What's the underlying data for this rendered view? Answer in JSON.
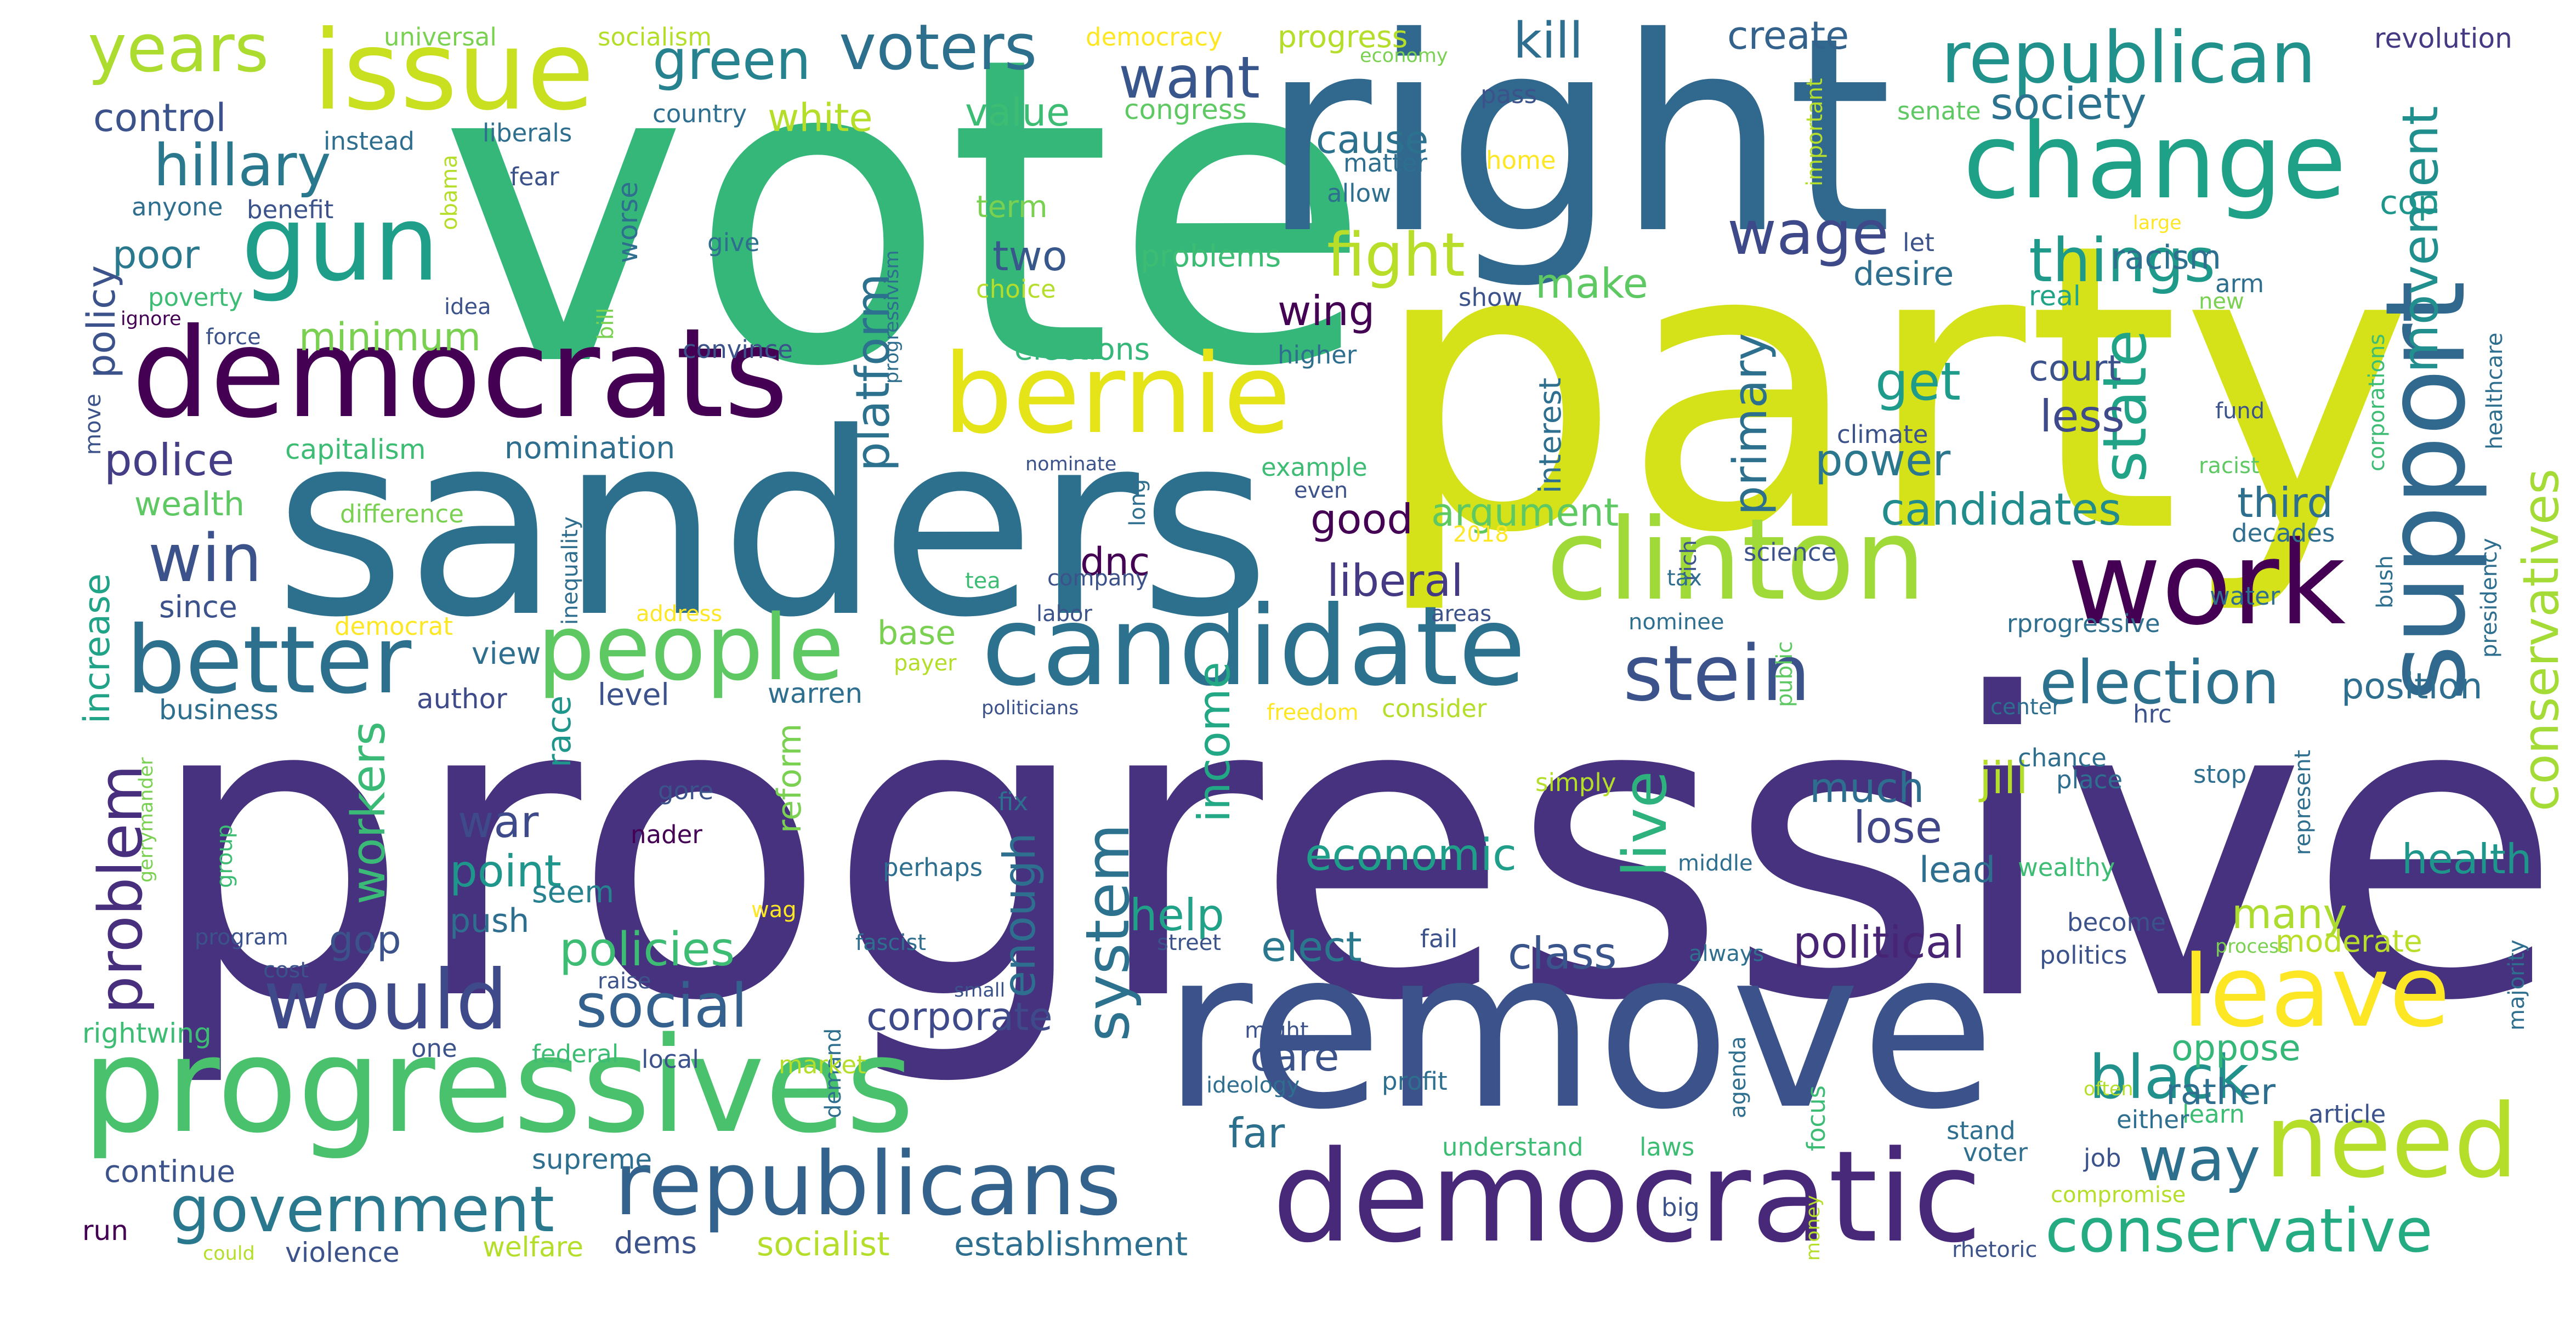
{
  "words": [
    {
      "text": "progressive",
      "color": "#46327e"
    },
    {
      "text": "vote",
      "color": "#35b779"
    },
    {
      "text": "party",
      "color": "#d5e21a"
    },
    {
      "text": "right",
      "color": "#31688e"
    },
    {
      "text": "sanders",
      "color": "#2d708e"
    },
    {
      "text": "remove",
      "color": "#3b528b"
    },
    {
      "text": "issue",
      "color": "#c8e020"
    },
    {
      "text": "democrats",
      "color": "#440154"
    },
    {
      "text": "change",
      "color": "#1fa188"
    },
    {
      "text": "gun",
      "color": "#1f9e89"
    },
    {
      "text": "bernie",
      "color": "#e5e419"
    },
    {
      "text": "support",
      "color": "#31688e"
    },
    {
      "text": "clinton",
      "color": "#a0da39"
    },
    {
      "text": "progressives",
      "color": "#4ac16d"
    },
    {
      "text": "candidate",
      "color": "#2c728e"
    },
    {
      "text": "work",
      "color": "#440154"
    },
    {
      "text": "better",
      "color": "#2d708e"
    },
    {
      "text": "people",
      "color": "#5ec962"
    },
    {
      "text": "democratic",
      "color": "#482878"
    },
    {
      "text": "republicans",
      "color": "#33638d"
    },
    {
      "text": "need",
      "color": "#b5de2b"
    },
    {
      "text": "leave",
      "color": "#fde725"
    },
    {
      "text": "would",
      "color": "#3e4a89"
    },
    {
      "text": "stein",
      "color": "#3b528b"
    },
    {
      "text": "election",
      "color": "#2c728e"
    },
    {
      "text": "government",
      "color": "#2a788e"
    },
    {
      "text": "conservative",
      "color": "#25ab82"
    },
    {
      "text": "republican",
      "color": "#21918c"
    },
    {
      "text": "voters",
      "color": "#2d708e"
    },
    {
      "text": "green",
      "color": "#26828e"
    },
    {
      "text": "hillary",
      "color": "#2a788e"
    },
    {
      "text": "years",
      "color": "#addc30"
    },
    {
      "text": "social",
      "color": "#34618d"
    },
    {
      "text": "way",
      "color": "#2d708e"
    },
    {
      "text": "black",
      "color": "#21918c"
    },
    {
      "text": "win",
      "color": "#3b528b"
    },
    {
      "text": "wage",
      "color": "#3e4989"
    },
    {
      "text": "things",
      "color": "#1f9a8a"
    },
    {
      "text": "fight",
      "color": "#b8de29"
    },
    {
      "text": "want",
      "color": "#39568c"
    },
    {
      "text": "system",
      "color": "#2c728e"
    },
    {
      "text": "live",
      "color": "#2db27d"
    },
    {
      "text": "state",
      "color": "#20a386"
    },
    {
      "text": "movement",
      "color": "#218f8d"
    },
    {
      "text": "conservatives",
      "color": "#a5db36"
    },
    {
      "text": "problem",
      "color": "#472f7d"
    },
    {
      "text": "platform",
      "color": "#2c728e"
    },
    {
      "text": "primary",
      "color": "#2d708e"
    },
    {
      "text": "kill",
      "color": "#2e6e8e"
    },
    {
      "text": "society",
      "color": "#2c728e"
    },
    {
      "text": "create",
      "color": "#33638d"
    },
    {
      "text": "policies",
      "color": "#3dbc74"
    },
    {
      "text": "economic",
      "color": "#1f9e89"
    },
    {
      "text": "political",
      "color": "#482475"
    },
    {
      "text": "candidates",
      "color": "#228c8d"
    },
    {
      "text": "class",
      "color": "#3a548c"
    },
    {
      "text": "get",
      "color": "#1e9b8a"
    },
    {
      "text": "less",
      "color": "#3e4a89"
    },
    {
      "text": "power",
      "color": "#2a778e"
    },
    {
      "text": "third",
      "color": "#2e6e8e"
    },
    {
      "text": "jill",
      "color": "#b5de2b"
    },
    {
      "text": "lose",
      "color": "#404688"
    },
    {
      "text": "health",
      "color": "#1f968b"
    },
    {
      "text": "many",
      "color": "#addc30"
    },
    {
      "text": "moderate",
      "color": "#b8de29"
    },
    {
      "text": "help",
      "color": "#1fa287"
    },
    {
      "text": "workers",
      "color": "#3aba76"
    },
    {
      "text": "war",
      "color": "#3e4a89"
    },
    {
      "text": "point",
      "color": "#1f968b"
    },
    {
      "text": "liberal",
      "color": "#443983"
    },
    {
      "text": "good",
      "color": "#440154"
    },
    {
      "text": "income",
      "color": "#22a884"
    },
    {
      "text": "enough",
      "color": "#2e6e8e"
    },
    {
      "text": "corporate",
      "color": "#3e4a89"
    },
    {
      "text": "care",
      "color": "#3b528b"
    },
    {
      "text": "far",
      "color": "#2d708e"
    },
    {
      "text": "elect",
      "color": "#2a788e"
    },
    {
      "text": "oppose",
      "color": "#35b779"
    },
    {
      "text": "rather",
      "color": "#2e6e8e"
    },
    {
      "text": "police",
      "color": "#433e85"
    },
    {
      "text": "poor",
      "color": "#2a788e"
    },
    {
      "text": "policy",
      "color": "#3b528b"
    },
    {
      "text": "control",
      "color": "#3b528b"
    },
    {
      "text": "minimum",
      "color": "#7ad151"
    },
    {
      "text": "make",
      "color": "#5ec962"
    },
    {
      "text": "white",
      "color": "#b5de2b"
    },
    {
      "text": "value",
      "color": "#3dbc74"
    },
    {
      "text": "two",
      "color": "#38588c"
    },
    {
      "text": "wing",
      "color": "#440154"
    },
    {
      "text": "cause",
      "color": "#2c728e"
    },
    {
      "text": "desire",
      "color": "#2e6e8e"
    },
    {
      "text": "racism",
      "color": "#2e6e8e"
    },
    {
      "text": "cop",
      "color": "#1f968b"
    },
    {
      "text": "argument",
      "color": "#5ec962"
    },
    {
      "text": "court",
      "color": "#3b528b"
    },
    {
      "text": "dnc",
      "color": "#440154"
    },
    {
      "text": "gop",
      "color": "#3b528b"
    },
    {
      "text": "push",
      "color": "#2e6e8e"
    },
    {
      "text": "seem",
      "color": "#26828e"
    },
    {
      "text": "increase",
      "color": "#20a386"
    },
    {
      "text": "wealth",
      "color": "#5ec962"
    },
    {
      "text": "since",
      "color": "#3b528b"
    },
    {
      "text": "race",
      "color": "#1f968b"
    },
    {
      "text": "reform",
      "color": "#7ad151"
    },
    {
      "text": "view",
      "color": "#2e6e8e"
    },
    {
      "text": "level",
      "color": "#3b528b"
    },
    {
      "text": "author",
      "color": "#3e4a89"
    },
    {
      "text": "business",
      "color": "#2e6e8e"
    },
    {
      "text": "warren",
      "color": "#2e6e8e"
    },
    {
      "text": "much",
      "color": "#2e6e8e"
    },
    {
      "text": "lead",
      "color": "#2e6e8e"
    },
    {
      "text": "base",
      "color": "#7ad151"
    },
    {
      "text": "position",
      "color": "#2e6e8e"
    },
    {
      "text": "nomination",
      "color": "#2e6e8e"
    },
    {
      "text": "capitalism",
      "color": "#3dbc74"
    },
    {
      "text": "elections",
      "color": "#35b779"
    },
    {
      "text": "problems",
      "color": "#3dbc74"
    },
    {
      "text": "term",
      "color": "#7ad151"
    },
    {
      "text": "interest",
      "color": "#2e6e8e"
    },
    {
      "text": "worse",
      "color": "#2e6e8e"
    },
    {
      "text": "benefit",
      "color": "#3b528b"
    },
    {
      "text": "anyone",
      "color": "#2e6e8e"
    },
    {
      "text": "instead",
      "color": "#2e6e8e"
    },
    {
      "text": "universal",
      "color": "#7ad151"
    },
    {
      "text": "socialism",
      "color": "#b5de2b"
    },
    {
      "text": "democracy",
      "color": "#fde725"
    },
    {
      "text": "progress",
      "color": "#b5de2b"
    },
    {
      "text": "congress",
      "color": "#5ec962"
    },
    {
      "text": "economy",
      "color": "#7ad151"
    },
    {
      "text": "revolution",
      "color": "#443983"
    },
    {
      "text": "pass",
      "color": "#3b528b"
    },
    {
      "text": "senate",
      "color": "#5ec962"
    },
    {
      "text": "important",
      "color": "#b5de2b"
    },
    {
      "text": "home",
      "color": "#fde725"
    },
    {
      "text": "matter",
      "color": "#2e6e8e"
    },
    {
      "text": "allow",
      "color": "#2e6e8e"
    },
    {
      "text": "liberals",
      "color": "#2e6e8e"
    },
    {
      "text": "country",
      "color": "#2e6e8e"
    },
    {
      "text": "fear",
      "color": "#3b528b"
    },
    {
      "text": "obama",
      "color": "#b5de2b"
    },
    {
      "text": "give",
      "color": "#2e6e8e"
    },
    {
      "text": "choice",
      "color": "#b5de2b"
    },
    {
      "text": "idea",
      "color": "#3b528b"
    },
    {
      "text": "poverty",
      "color": "#3dbc74"
    },
    {
      "text": "ignore",
      "color": "#440154"
    },
    {
      "text": "force",
      "color": "#3b528b"
    },
    {
      "text": "bill",
      "color": "#7ad151"
    },
    {
      "text": "convince",
      "color": "#3b528b"
    },
    {
      "text": "progressivism",
      "color": "#2e6e8e"
    },
    {
      "text": "higher",
      "color": "#2e6e8e"
    },
    {
      "text": "show",
      "color": "#3b528b"
    },
    {
      "text": "let",
      "color": "#3b528b"
    },
    {
      "text": "real",
      "color": "#20a386"
    },
    {
      "text": "new",
      "color": "#7ad151"
    },
    {
      "text": "arm",
      "color": "#2e6e8e"
    },
    {
      "text": "large",
      "color": "#fde725"
    },
    {
      "text": "corporations",
      "color": "#3dbc74"
    },
    {
      "text": "healthcare",
      "color": "#2e6e8e"
    },
    {
      "text": "climate",
      "color": "#3b528b"
    },
    {
      "text": "fund",
      "color": "#3b528b"
    },
    {
      "text": "racist",
      "color": "#5ec962"
    },
    {
      "text": "decades",
      "color": "#2e6e8e"
    },
    {
      "text": "science",
      "color": "#3b528b"
    },
    {
      "text": "rich",
      "color": "#3b528b"
    },
    {
      "text": "tax",
      "color": "#2e6e8e"
    },
    {
      "text": "water",
      "color": "#2e6e8e"
    },
    {
      "text": "presidency",
      "color": "#2e6e8e"
    },
    {
      "text": "bush",
      "color": "#2e6e8e"
    },
    {
      "text": "nominee",
      "color": "#2e6e8e"
    },
    {
      "text": "rprogressive",
      "color": "#2e6e8e"
    },
    {
      "text": "center",
      "color": "#2e6e8e"
    },
    {
      "text": "public",
      "color": "#5ec962"
    },
    {
      "text": "freedom",
      "color": "#fde725"
    },
    {
      "text": "consider",
      "color": "#b5de2b"
    },
    {
      "text": "politicians",
      "color": "#3b528b"
    },
    {
      "text": "hrc",
      "color": "#3b528b"
    },
    {
      "text": "chance",
      "color": "#2e6e8e"
    },
    {
      "text": "place",
      "color": "#2e6e8e"
    },
    {
      "text": "stop",
      "color": "#2e6e8e"
    },
    {
      "text": "represent",
      "color": "#2e6e8e"
    },
    {
      "text": "middle",
      "color": "#2e6e8e"
    },
    {
      "text": "wealthy",
      "color": "#3dbc74"
    },
    {
      "text": "become",
      "color": "#3b528b"
    },
    {
      "text": "politics",
      "color": "#3b528b"
    },
    {
      "text": "process",
      "color": "#7ad151"
    },
    {
      "text": "majority",
      "color": "#2e6e8e"
    },
    {
      "text": "often",
      "color": "#b5de2b"
    },
    {
      "text": "learn",
      "color": "#3dbc74"
    },
    {
      "text": "either",
      "color": "#2e6e8e"
    },
    {
      "text": "article",
      "color": "#3b528b"
    },
    {
      "text": "stand",
      "color": "#2e6e8e"
    },
    {
      "text": "voter",
      "color": "#2e6e8e"
    },
    {
      "text": "job",
      "color": "#3b528b"
    },
    {
      "text": "compromise",
      "color": "#b5de2b"
    },
    {
      "text": "rhetoric",
      "color": "#3b528b"
    },
    {
      "text": "money",
      "color": "#b5de2b"
    },
    {
      "text": "big",
      "color": "#3b528b"
    },
    {
      "text": "laws",
      "color": "#3dbc74"
    },
    {
      "text": "understand",
      "color": "#3dbc74"
    },
    {
      "text": "focus",
      "color": "#3dbc74"
    },
    {
      "text": "agenda",
      "color": "#2e6e8e"
    },
    {
      "text": "profit",
      "color": "#2e6e8e"
    },
    {
      "text": "ideology",
      "color": "#2e6e8e"
    },
    {
      "text": "might",
      "color": "#3b528b"
    },
    {
      "text": "fail",
      "color": "#3b528b"
    },
    {
      "text": "always",
      "color": "#2e6e8e"
    },
    {
      "text": "fascist",
      "color": "#2e6e8e"
    },
    {
      "text": "small",
      "color": "#3b528b"
    },
    {
      "text": "demand",
      "color": "#2e6e8e"
    },
    {
      "text": "perhaps",
      "color": "#2e6e8e"
    },
    {
      "text": "street",
      "color": "#3b528b"
    },
    {
      "text": "fix",
      "color": "#2e6e8e"
    },
    {
      "text": "nader",
      "color": "#440154"
    },
    {
      "text": "gore",
      "color": "#3b528b"
    },
    {
      "text": "wag",
      "color": "#fde725"
    },
    {
      "text": "market",
      "color": "#b5de2b"
    },
    {
      "text": "local",
      "color": "#3b528b"
    },
    {
      "text": "federal",
      "color": "#3dbc74"
    },
    {
      "text": "supreme",
      "color": "#2e6e8e"
    },
    {
      "text": "welfare",
      "color": "#b5de2b"
    },
    {
      "text": "dems",
      "color": "#3b528b"
    },
    {
      "text": "socialist",
      "color": "#b5de2b"
    },
    {
      "text": "establishment",
      "color": "#2e6e8e"
    },
    {
      "text": "violence",
      "color": "#3b528b"
    },
    {
      "text": "could",
      "color": "#b5de2b"
    },
    {
      "text": "run",
      "color": "#440154"
    },
    {
      "text": "continue",
      "color": "#3b528b"
    },
    {
      "text": "rightwing",
      "color": "#3dbc74"
    },
    {
      "text": "one",
      "color": "#3b528b"
    },
    {
      "text": "raise",
      "color": "#3b528b"
    },
    {
      "text": "cost",
      "color": "#3b528b"
    },
    {
      "text": "program",
      "color": "#3b528b"
    },
    {
      "text": "group",
      "color": "#3dbc74"
    },
    {
      "text": "gerrymander",
      "color": "#7ad151"
    },
    {
      "text": "democrat",
      "color": "#fde725"
    },
    {
      "text": "address",
      "color": "#fde725"
    },
    {
      "text": "tea",
      "color": "#3dbc74"
    },
    {
      "text": "company",
      "color": "#3b528b"
    },
    {
      "text": "labor",
      "color": "#3b528b"
    },
    {
      "text": "areas",
      "color": "#3b528b"
    },
    {
      "text": "payer",
      "color": "#b5de2b"
    },
    {
      "text": "inequality",
      "color": "#2e6e8e"
    },
    {
      "text": "2018",
      "color": "#fde725"
    },
    {
      "text": "difference",
      "color": "#7ad151"
    },
    {
      "text": "example",
      "color": "#3dbc74"
    },
    {
      "text": "even",
      "color": "#3b528b"
    },
    {
      "text": "long",
      "color": "#2e6e8e"
    },
    {
      "text": "nominate",
      "color": "#3b528b"
    },
    {
      "text": "move",
      "color": "#3b528b"
    },
    {
      "text": "simply",
      "color": "#b5de2b"
    }
  ]
}
